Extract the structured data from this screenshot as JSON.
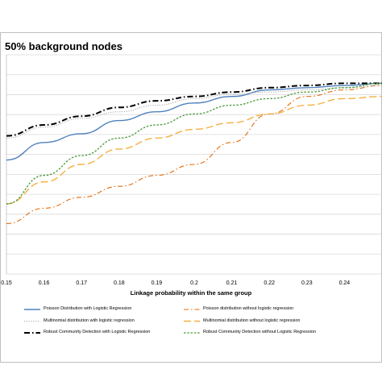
{
  "chart_data": {
    "type": "line",
    "title": "50% background nodes",
    "xlabel": "Linkage probability within the same group",
    "ylabel": "",
    "x": [
      0.15,
      0.16,
      0.17,
      0.18,
      0.19,
      0.2,
      0.21,
      0.22,
      0.23,
      0.24,
      0.25
    ],
    "x_ticks": [
      "0.15",
      "0.16",
      "0.17",
      "0.18",
      "0.19",
      "0.2",
      "0.21",
      "0.22",
      "0.23",
      "0.24"
    ],
    "ylim": [
      0,
      1
    ],
    "grid": true,
    "legend_position": "bottom",
    "series": [
      {
        "name": "Poisson Distribution with Logistic Regression",
        "color": "#4f81bd",
        "dash": "solid",
        "values": [
          0.52,
          0.6,
          0.64,
          0.7,
          0.74,
          0.78,
          0.81,
          0.84,
          0.85,
          0.86,
          0.87
        ]
      },
      {
        "name": "Poisson distribution without logistic regression",
        "color": "#e46c0a",
        "dash": "dashdot",
        "values": [
          0.23,
          0.3,
          0.35,
          0.4,
          0.45,
          0.5,
          0.6,
          0.73,
          0.81,
          0.84,
          0.86
        ]
      },
      {
        "name": "Multinomial distribution with logistic regression",
        "color": "#a6a6a6",
        "dash": "dotted",
        "values": [
          0.62,
          0.67,
          0.71,
          0.74,
          0.77,
          0.8,
          0.82,
          0.83,
          0.84,
          0.85,
          0.86
        ]
      },
      {
        "name": "Multinomial distribution without logistic regression",
        "color": "#f4b040",
        "dash": "longdash",
        "values": [
          0.32,
          0.42,
          0.5,
          0.57,
          0.62,
          0.66,
          0.69,
          0.73,
          0.77,
          0.8,
          0.81
        ]
      },
      {
        "name": "Robust Community Detection with Logistic Regression",
        "color": "#000000",
        "dash": "dashdot-bold",
        "values": [
          0.63,
          0.68,
          0.72,
          0.76,
          0.79,
          0.81,
          0.83,
          0.85,
          0.86,
          0.87,
          0.87
        ]
      },
      {
        "name": "Robust Community Detection without Logistic Regression",
        "color": "#4a9a3a",
        "dash": "dashed",
        "values": [
          0.32,
          0.45,
          0.54,
          0.62,
          0.68,
          0.73,
          0.77,
          0.8,
          0.83,
          0.85,
          0.87
        ]
      }
    ]
  }
}
